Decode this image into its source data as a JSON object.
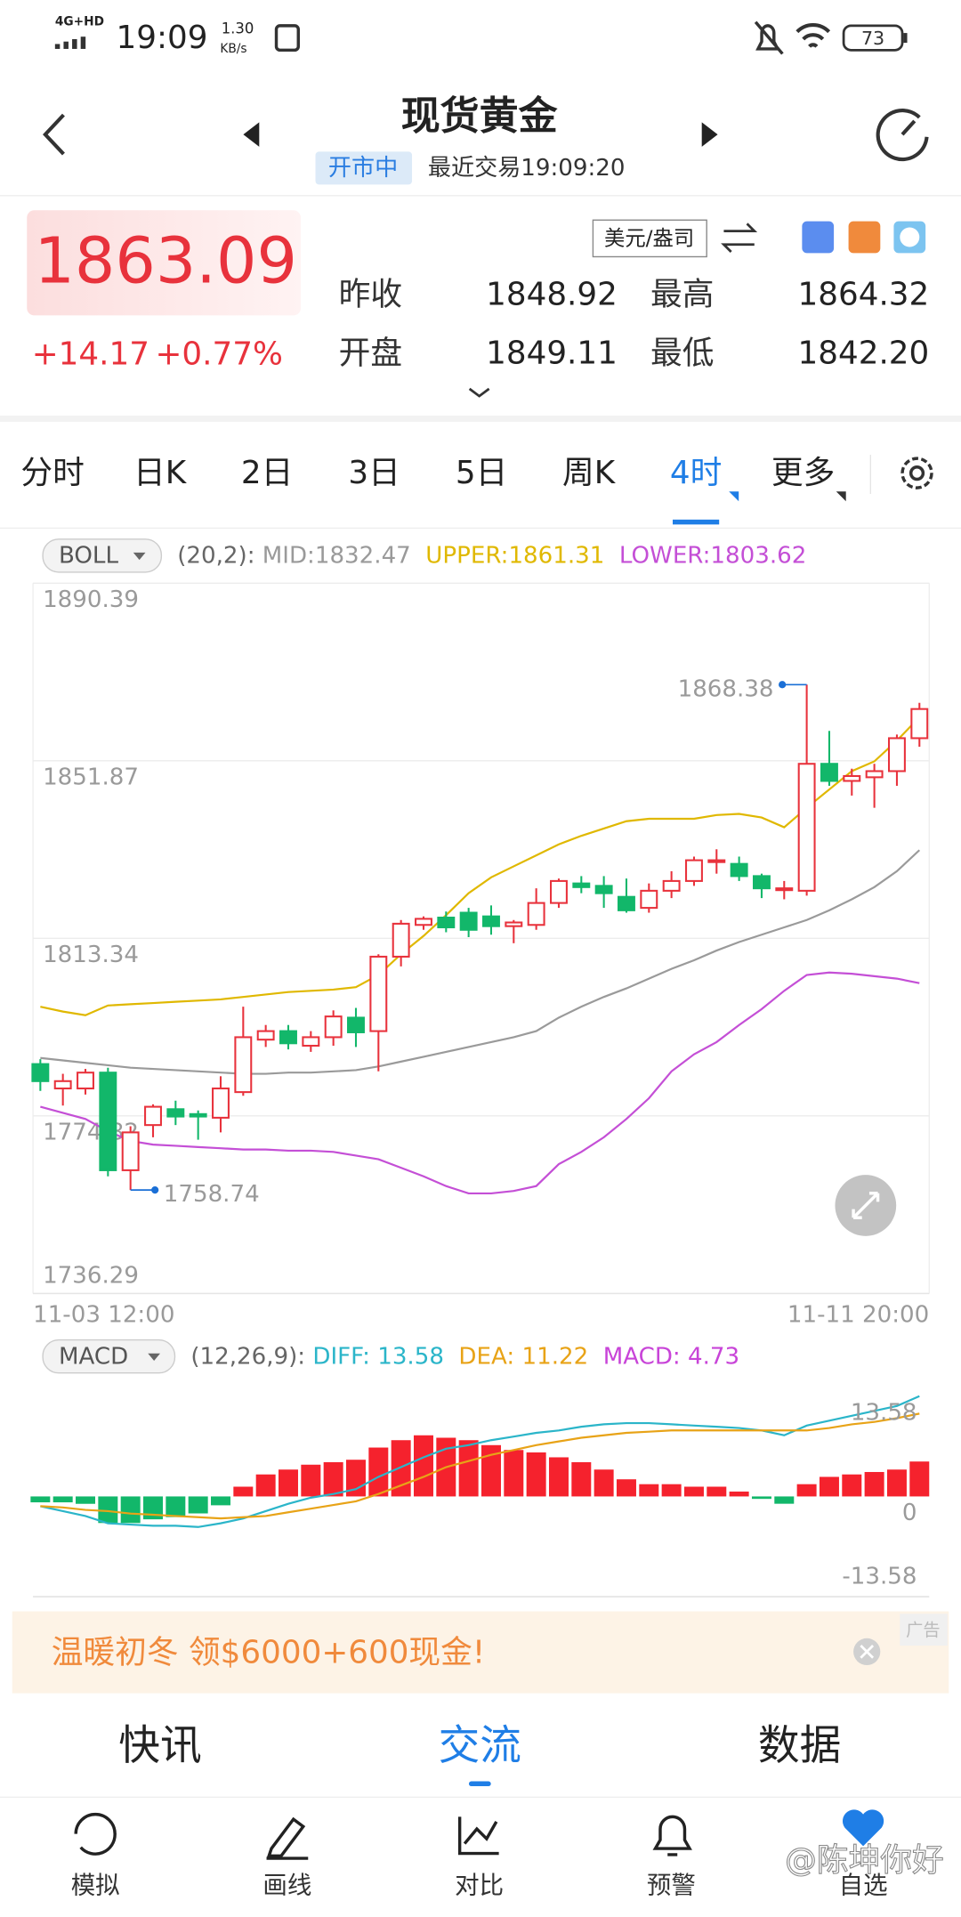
{
  "status_bar": {
    "network": "4G+HD",
    "time": "19:09",
    "speed": "1.30",
    "speed_unit": "KB/s",
    "battery": "73"
  },
  "header": {
    "title": "现货黄金",
    "market_status": "开市中",
    "last_trade": "最近交易19:09:20"
  },
  "quote": {
    "price": "1863.09",
    "change": "+14.17",
    "change_percent": "+0.77%",
    "unit": "美元/盎司",
    "fields": [
      {
        "label": "昨收",
        "value": "1848.92"
      },
      {
        "label": "最高",
        "value": "1864.32"
      },
      {
        "label": "开盘",
        "value": "1849.11"
      },
      {
        "label": "最低",
        "value": "1842.20"
      }
    ]
  },
  "tabs": [
    "分时",
    "日K",
    "2日",
    "3日",
    "5日",
    "周K",
    "4时",
    "更多"
  ],
  "active_tab": 6,
  "chart_data": [
    {
      "type": "candlestick",
      "indicator": "BOLL",
      "params": "(20,2):",
      "categories": [
        "11-03 12:00",
        null,
        null,
        null,
        null,
        null,
        null,
        null,
        null,
        null,
        null,
        null,
        null,
        null,
        null,
        null,
        null,
        null,
        null,
        null,
        null,
        null,
        null,
        null,
        null,
        null,
        null,
        null,
        null,
        null,
        null,
        null,
        null,
        null,
        null,
        null,
        null,
        null,
        null,
        "11-11 20:00"
      ],
      "open": [
        1786.06,
        1780.77,
        1780.77,
        1784.21,
        1763.03,
        1772.83,
        1776.27,
        1775.21,
        1774.42,
        1779.98,
        1791.36,
        1793.21,
        1790.04,
        1791.89,
        1796.13,
        1793.21,
        1809.36,
        1816.25,
        1817.84,
        1818.9,
        1818.1,
        1815.98,
        1816.25,
        1821.01,
        1825.25,
        1824.72,
        1822.34,
        1819.95,
        1823.66,
        1825.78,
        1830.02,
        1829.49,
        1826.84,
        1823.93,
        1823.66,
        1851.2,
        1847.49,
        1848.28,
        1849.61,
        1856.76
      ],
      "high": [
        1787.12,
        1783.95,
        1785.01,
        1785.27,
        1772.56,
        1777.33,
        1778.12,
        1776.0,
        1783.42,
        1798.51,
        1794.54,
        1794.54,
        1793.21,
        1797.71,
        1798.24,
        1809.89,
        1817.31,
        1818.1,
        1819.16,
        1819.95,
        1820.48,
        1817.31,
        1824.19,
        1826.31,
        1826.84,
        1826.84,
        1826.31,
        1825.25,
        1827.9,
        1831.07,
        1832.66,
        1831.07,
        1827.37,
        1825.78,
        1868.38,
        1858.34,
        1850.14,
        1851.2,
        1857.55,
        1864.43
      ],
      "low": [
        1780.24,
        1777.06,
        1779.45,
        1761.71,
        1758.74,
        1770.18,
        1772.83,
        1769.65,
        1771.24,
        1779.18,
        1789.77,
        1789.24,
        1788.71,
        1790.04,
        1789.77,
        1784.48,
        1807.25,
        1815.19,
        1814.66,
        1813.6,
        1814.13,
        1812.28,
        1815.19,
        1819.95,
        1823.13,
        1819.95,
        1818.9,
        1818.9,
        1822.07,
        1824.72,
        1827.37,
        1825.78,
        1822.07,
        1821.81,
        1822.6,
        1846.43,
        1844.31,
        1841.66,
        1846.43,
        1854.9
      ],
      "close": [
        1782.36,
        1782.36,
        1784.21,
        1763.03,
        1771.24,
        1776.8,
        1774.68,
        1774.68,
        1780.77,
        1791.89,
        1793.21,
        1790.57,
        1791.89,
        1796.39,
        1792.95,
        1809.36,
        1816.51,
        1817.57,
        1815.72,
        1815.19,
        1815.98,
        1816.78,
        1821.01,
        1825.78,
        1824.45,
        1823.13,
        1819.42,
        1823.66,
        1825.78,
        1830.28,
        1830.28,
        1826.84,
        1824.19,
        1824.19,
        1851.2,
        1847.49,
        1848.55,
        1849.61,
        1856.76,
        1863.09
      ],
      "up_color": "#e8323c",
      "down_color": "#12b76a",
      "series": [
        {
          "name": "MID:1832.47",
          "color": "#9a9a9a",
          "values": [
            1787.39,
            1786.86,
            1786.33,
            1785.8,
            1785.27,
            1785.01,
            1784.74,
            1784.48,
            1784.21,
            1783.95,
            1783.95,
            1784.21,
            1784.21,
            1784.48,
            1784.74,
            1785.54,
            1786.59,
            1787.65,
            1788.71,
            1789.77,
            1790.83,
            1791.89,
            1793.21,
            1796.13,
            1798.51,
            1800.63,
            1802.48,
            1804.6,
            1806.72,
            1808.57,
            1810.69,
            1812.54,
            1814.13,
            1815.72,
            1817.31,
            1819.42,
            1821.81,
            1824.45,
            1827.9,
            1832.47
          ]
        },
        {
          "name": "UPPER:1861.31",
          "color": "#e0b800",
          "values": [
            1798.51,
            1797.45,
            1796.66,
            1798.77,
            1799.04,
            1799.3,
            1799.57,
            1799.83,
            1800.1,
            1800.63,
            1801.16,
            1801.69,
            1801.95,
            1802.22,
            1802.74,
            1805.39,
            1809.89,
            1813.86,
            1818.37,
            1823.13,
            1826.57,
            1828.96,
            1831.34,
            1833.72,
            1835.58,
            1837.16,
            1838.75,
            1839.28,
            1839.28,
            1839.28,
            1840.08,
            1840.34,
            1839.55,
            1837.43,
            1841.66,
            1845.64,
            1849.61,
            1851.73,
            1856.23,
            1861.31
          ]
        },
        {
          "name": "LOWER:1803.62",
          "color": "#c44fd6",
          "values": [
            1776.8,
            1775.47,
            1774.15,
            1771.5,
            1769.39,
            1768.59,
            1768.33,
            1768.06,
            1767.8,
            1767.53,
            1767.53,
            1767.27,
            1767.27,
            1767.0,
            1766.21,
            1765.41,
            1763.56,
            1761.71,
            1759.59,
            1758.0,
            1758.0,
            1758.53,
            1759.59,
            1764.35,
            1767.0,
            1770.18,
            1774.15,
            1778.65,
            1784.48,
            1788.18,
            1790.83,
            1794.54,
            1797.98,
            1801.95,
            1805.39,
            1805.92,
            1805.66,
            1805.13,
            1804.6,
            1803.62
          ]
        }
      ],
      "ylim": [
        1736.29,
        1890.39
      ],
      "yticks": [
        1890.39,
        1851.87,
        1813.34,
        1774.82,
        1736.29
      ],
      "grid": true,
      "high_label": "1868.38",
      "low_label": "1758.74"
    },
    {
      "type": "bar",
      "indicator": "MACD",
      "params": "(12,26,9):",
      "up_color": "#f5222d",
      "down_color": "#12b76a",
      "series": [
        {
          "name": "DIFF: 13.58",
          "color": "#2bb5c9",
          "kind": "line",
          "values": [
            -1.32,
            -1.99,
            -2.65,
            -3.64,
            -3.81,
            -3.97,
            -3.97,
            -4.14,
            -3.64,
            -2.98,
            -1.99,
            -0.99,
            -0.17,
            0.33,
            0.99,
            2.65,
            3.97,
            5.3,
            6.46,
            6.95,
            7.62,
            8.11,
            8.61,
            8.94,
            9.44,
            9.77,
            9.93,
            9.93,
            9.77,
            9.6,
            9.44,
            9.27,
            8.94,
            8.28,
            9.6,
            10.26,
            10.93,
            11.59,
            12.25,
            13.58
          ]
        },
        {
          "name": "DEA: 11.22",
          "color": "#e8a317",
          "kind": "line",
          "values": [
            -1.32,
            -1.49,
            -1.82,
            -1.99,
            -2.32,
            -2.48,
            -2.65,
            -2.81,
            -2.98,
            -2.81,
            -2.65,
            -2.15,
            -1.66,
            -1.16,
            -0.66,
            0.33,
            1.49,
            2.65,
            3.97,
            4.8,
            5.63,
            6.29,
            6.95,
            7.45,
            7.95,
            8.28,
            8.61,
            8.77,
            8.94,
            8.94,
            8.94,
            8.94,
            8.94,
            8.94,
            8.94,
            9.27,
            9.77,
            10.1,
            10.6,
            11.22
          ]
        },
        {
          "name": "MACD: 4.73",
          "color": "#c844d8",
          "kind": "bar",
          "values": [
            -0.8,
            -0.8,
            -1.0,
            -3.6,
            -3.6,
            -3.1,
            -2.8,
            -2.3,
            -1.2,
            1.32,
            2.98,
            3.64,
            4.3,
            4.64,
            4.97,
            6.62,
            7.62,
            8.28,
            7.95,
            7.62,
            6.95,
            6.29,
            5.96,
            5.3,
            4.64,
            3.64,
            2.32,
            1.66,
            1.66,
            1.32,
            1.32,
            0.66,
            -0.33,
            -0.99,
            1.66,
            2.65,
            2.98,
            3.31,
            3.64,
            4.73
          ]
        }
      ],
      "ylim": [
        -13.58,
        13.58
      ],
      "yticks": [
        13.58,
        0,
        -13.58
      ],
      "grid": false
    }
  ],
  "ad": {
    "text": "温暖初冬 领$6000+600现金!",
    "tag": "广告"
  },
  "sections": [
    "快讯",
    "交流",
    "数据"
  ],
  "active_section": 1,
  "nav": [
    "模拟",
    "画线",
    "对比",
    "预警",
    "自选"
  ],
  "watermark": "@陈坤你好"
}
